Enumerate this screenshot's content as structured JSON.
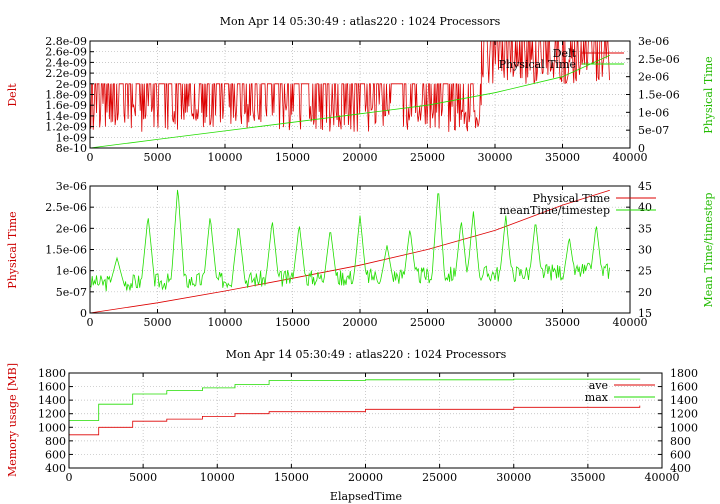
{
  "colors": {
    "red": "#dd0000",
    "green": "#22dd00"
  },
  "chart_data": [
    {
      "type": "line",
      "title": "Mon Apr 14 05:30:49 : atlas220 : 1024 Processors",
      "xlabel": "",
      "ylabel": "Delt",
      "y2label": "Physical Time",
      "xlim": [
        0,
        40000
      ],
      "ylim": [
        8e-10,
        2.8e-09
      ],
      "y2lim": [
        0,
        3e-06
      ],
      "xticks": [
        "0",
        "5000",
        "10000",
        "15000",
        "20000",
        "25000",
        "30000",
        "35000",
        "40000"
      ],
      "yticks": [
        "8e-10",
        "1e-09",
        "1.2e-09",
        "1.4e-09",
        "1.6e-09",
        "1.8e-09",
        "2e-09",
        "2.2e-09",
        "2.4e-09",
        "2.6e-09",
        "2.8e-09"
      ],
      "y2ticks": [
        "0",
        "5e-07",
        "1e-06",
        "1.5e-06",
        "2e-06",
        "2.5e-06",
        "3e-06"
      ],
      "grid": true,
      "legend": "top-right",
      "series": [
        {
          "name": "Delt",
          "axis": "y",
          "x": [
            0,
            3000,
            6000,
            9000,
            12000,
            15000,
            18000,
            21000,
            24000,
            27000,
            28500,
            29000,
            32000,
            35000,
            38500
          ],
          "values": [
            1.6e-09,
            1.6e-09,
            1.6e-09,
            1.6e-09,
            1.6e-09,
            1.6e-09,
            1.6e-09,
            1.6e-09,
            1.6e-09,
            1.6e-09,
            1.6e-09,
            2.4e-09,
            2.4e-09,
            2.4e-09,
            2.4e-09
          ]
        },
        {
          "name": "Physical Time",
          "axis": "y2",
          "x": [
            0,
            5000,
            10000,
            15000,
            20000,
            25000,
            30000,
            35000,
            38500
          ],
          "values": [
            0,
            2.4e-07,
            4.8e-07,
            7.2e-07,
            9.6e-07,
            1.2e-06,
            1.55e-06,
            2e-06,
            2.6e-06
          ]
        }
      ]
    },
    {
      "type": "line",
      "title": "",
      "xlabel": "",
      "ylabel": "Physical Time",
      "y2label": "Mean Time/timestep",
      "xlim": [
        0,
        40000
      ],
      "ylim": [
        0,
        3e-06
      ],
      "y2lim": [
        15,
        45
      ],
      "xticks": [
        "0",
        "5000",
        "10000",
        "15000",
        "20000",
        "25000",
        "30000",
        "35000",
        "40000"
      ],
      "yticks": [
        "0",
        "5e-07",
        "1e-06",
        "1.5e-06",
        "2e-06",
        "2.5e-06",
        "3e-06"
      ],
      "y2ticks": [
        "15",
        "20",
        "25",
        "30",
        "35",
        "40",
        "45"
      ],
      "grid": true,
      "legend": "top-right",
      "series": [
        {
          "name": "Physical Time",
          "axis": "y",
          "x": [
            0,
            5000,
            10000,
            15000,
            20000,
            25000,
            30000,
            35000,
            38500
          ],
          "values": [
            0,
            2.4e-07,
            5.2e-07,
            8.2e-07,
            1.13e-06,
            1.5e-06,
            1.95e-06,
            2.55e-06,
            2.9e-06
          ]
        },
        {
          "name": "meanTime/timestep",
          "axis": "y2",
          "x": [
            0,
            2000,
            4300,
            6500,
            8900,
            11000,
            13500,
            15500,
            17800,
            20000,
            22000,
            23700,
            25800,
            27500,
            28400,
            30800,
            33000,
            35500,
            37500,
            38500
          ],
          "values": [
            21,
            28,
            38,
            45,
            38,
            36,
            37,
            36,
            35,
            38,
            31,
            35,
            45,
            37,
            39,
            38,
            37,
            33,
            36,
            21
          ]
        }
      ]
    },
    {
      "type": "line",
      "title": "Mon Apr 14 05:30:49 : atlas220 : 1024 Processors",
      "xlabel": "ElapsedTime",
      "ylabel": "Memory usage [MB]",
      "y2label": "",
      "xlim": [
        0,
        40000
      ],
      "ylim": [
        400,
        1800
      ],
      "y2lim": [
        400,
        1800
      ],
      "xticks": [
        "0",
        "5000",
        "10000",
        "15000",
        "20000",
        "25000",
        "30000",
        "35000",
        "40000"
      ],
      "yticks": [
        "400",
        "600",
        "800",
        "1000",
        "1200",
        "1400",
        "1600",
        "1800"
      ],
      "y2ticks": [
        "400",
        "600",
        "800",
        "1000",
        "1200",
        "1400",
        "1600",
        "1800"
      ],
      "grid": true,
      "legend": "top-right",
      "series": [
        {
          "name": "ave",
          "axis": "y",
          "x": [
            0,
            2000,
            4300,
            6600,
            9000,
            11200,
            13500,
            20000,
            30000,
            38500
          ],
          "values": [
            890,
            1000,
            1090,
            1120,
            1160,
            1200,
            1230,
            1265,
            1295,
            1320
          ]
        },
        {
          "name": "max",
          "axis": "y",
          "x": [
            0,
            2000,
            4300,
            6600,
            9000,
            11200,
            13500,
            20000,
            30000,
            38500
          ],
          "values": [
            1100,
            1340,
            1490,
            1540,
            1580,
            1630,
            1690,
            1700,
            1710,
            1715
          ]
        }
      ]
    }
  ]
}
